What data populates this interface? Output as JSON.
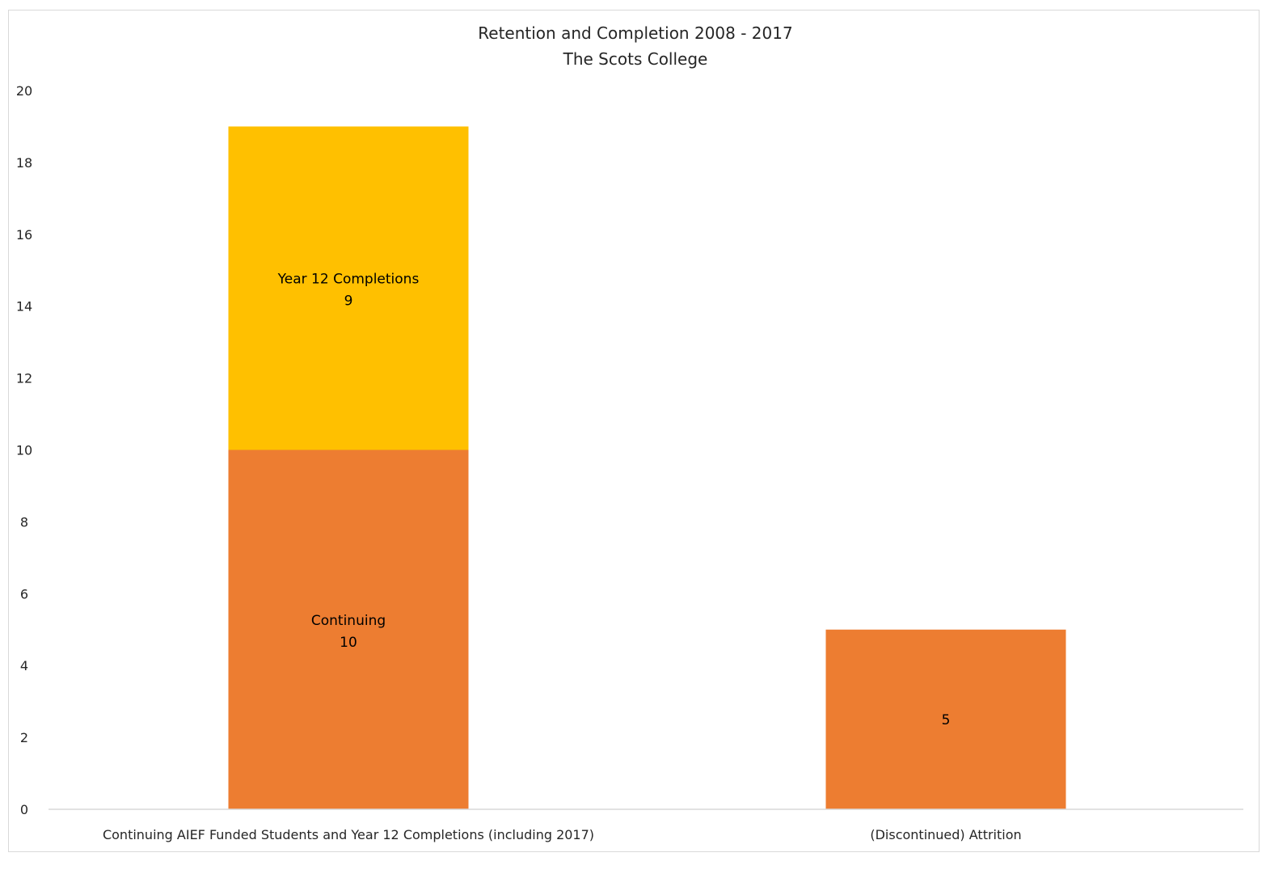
{
  "chart_data": {
    "type": "bar",
    "stacked": true,
    "title": "Retention and Completion 2008 - 2017",
    "subtitle": "The Scots College",
    "xlabel": "",
    "ylabel": "",
    "ylim": [
      0,
      20
    ],
    "yticks": [
      0,
      2,
      4,
      6,
      8,
      10,
      12,
      14,
      16,
      18,
      20
    ],
    "grid": false,
    "legend": "none",
    "categories": [
      "Continuing AIEF Funded Students and Year 12 Completions (including 2017)",
      "(Discontinued) Attrition"
    ],
    "bars": [
      {
        "category": "Continuing AIEF Funded Students and Year 12 Completions (including 2017)",
        "segments": [
          {
            "label": "Continuing",
            "value": 10,
            "value_label": "10",
            "color": "#ED7D31"
          },
          {
            "label": "Year 12 Completions",
            "value": 9,
            "value_label": "9",
            "color": "#FFC000"
          }
        ]
      },
      {
        "category": "(Discontinued) Attrition",
        "segments": [
          {
            "label": "",
            "value": 5,
            "value_label": "5",
            "color": "#ED7D31"
          }
        ]
      }
    ]
  }
}
